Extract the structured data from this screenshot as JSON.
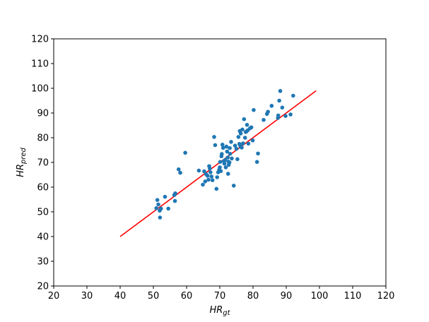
{
  "chart_data": {
    "type": "scatter",
    "xlabel": {
      "main": "HR",
      "sub": "gt"
    },
    "ylabel": {
      "main": "HR",
      "sub": "pred"
    },
    "xlim": [
      20,
      120
    ],
    "ylim": [
      20,
      120
    ],
    "xticks": [
      "20",
      "30",
      "40",
      "50",
      "60",
      "70",
      "80",
      "90",
      "100",
      "110",
      "120"
    ],
    "yticks": [
      "20",
      "30",
      "40",
      "50",
      "60",
      "70",
      "80",
      "90",
      "100",
      "110",
      "120"
    ],
    "grid": false,
    "colors": {
      "points": "#1f77b4",
      "line": "#ff0000"
    },
    "fit_line": {
      "x": [
        40,
        99
      ],
      "y": [
        40,
        99
      ]
    },
    "points": [
      [
        50.9,
        51.5
      ],
      [
        51.2,
        54.8
      ],
      [
        51.5,
        53.0
      ],
      [
        51.9,
        50.5
      ],
      [
        52.0,
        47.7
      ],
      [
        52.3,
        51.3
      ],
      [
        53.5,
        56.1
      ],
      [
        54.5,
        51.3
      ],
      [
        56.3,
        56.8
      ],
      [
        56.6,
        57.5
      ],
      [
        56.5,
        54.4
      ],
      [
        57.6,
        67.2
      ],
      [
        58.1,
        65.8
      ],
      [
        59.6,
        73.9
      ],
      [
        63.7,
        66.7
      ],
      [
        64.9,
        61.0
      ],
      [
        65.3,
        66.4
      ],
      [
        65.6,
        62.3
      ],
      [
        65.9,
        65.2
      ],
      [
        66.3,
        64.6
      ],
      [
        66.6,
        63.0
      ],
      [
        66.8,
        68.5
      ],
      [
        67.0,
        67.5
      ],
      [
        67.2,
        66.0
      ],
      [
        67.5,
        64.3
      ],
      [
        67.8,
        62.8
      ],
      [
        68.3,
        80.3
      ],
      [
        68.6,
        77.0
      ],
      [
        69.0,
        59.3
      ],
      [
        69.2,
        64.0
      ],
      [
        69.5,
        66.0
      ],
      [
        69.8,
        67.0
      ],
      [
        70.0,
        68.0
      ],
      [
        70.1,
        70.2
      ],
      [
        70.3,
        66.5
      ],
      [
        70.5,
        72.5
      ],
      [
        70.6,
        73.4
      ],
      [
        70.8,
        77.2
      ],
      [
        71.0,
        75.9
      ],
      [
        71.2,
        70.5
      ],
      [
        71.4,
        69.5
      ],
      [
        71.6,
        71.0
      ],
      [
        71.8,
        68.0
      ],
      [
        72.0,
        76.4
      ],
      [
        72.2,
        74.4
      ],
      [
        72.4,
        72.0
      ],
      [
        72.5,
        65.4
      ],
      [
        72.6,
        70.3
      ],
      [
        72.7,
        69.0
      ],
      [
        72.9,
        70.0
      ],
      [
        73.0,
        75.8
      ],
      [
        73.1,
        73.5
      ],
      [
        73.4,
        78.3
      ],
      [
        73.6,
        71.6
      ],
      [
        74.2,
        60.6
      ],
      [
        74.6,
        76.8
      ],
      [
        75.0,
        75.5
      ],
      [
        75.3,
        71.3
      ],
      [
        75.6,
        80.3
      ],
      [
        75.9,
        77.5
      ],
      [
        76.0,
        82.7
      ],
      [
        76.2,
        76.6
      ],
      [
        76.3,
        81.7
      ],
      [
        76.6,
        76.0
      ],
      [
        76.8,
        83.3
      ],
      [
        77.0,
        77.7
      ],
      [
        77.3,
        87.5
      ],
      [
        77.6,
        80.0
      ],
      [
        77.8,
        82.3
      ],
      [
        78.0,
        82.5
      ],
      [
        78.2,
        85.2
      ],
      [
        78.4,
        83.0
      ],
      [
        78.6,
        77.6
      ],
      [
        79.1,
        83.8
      ],
      [
        79.5,
        84.2
      ],
      [
        79.9,
        78.9
      ],
      [
        80.2,
        91.2
      ],
      [
        81.2,
        70.2
      ],
      [
        81.5,
        73.6
      ],
      [
        83.2,
        87.2
      ],
      [
        84.2,
        89.6
      ],
      [
        84.5,
        90.5
      ],
      [
        85.6,
        92.9
      ],
      [
        87.5,
        88.0
      ],
      [
        87.6,
        89.0
      ],
      [
        87.9,
        95.0
      ],
      [
        88.2,
        98.9
      ],
      [
        88.8,
        92.2
      ],
      [
        89.8,
        88.8
      ],
      [
        91.3,
        89.4
      ],
      [
        92.1,
        97.0
      ]
    ]
  }
}
